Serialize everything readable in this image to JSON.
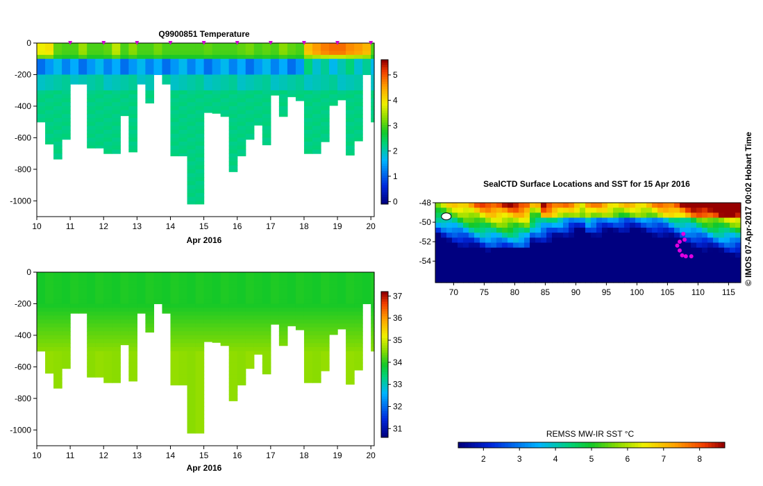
{
  "chart_data": [
    {
      "type": "heatmap",
      "title": "Q9900851  Temperature",
      "xlabel": "Apr 2016",
      "x_ticks": [
        "10",
        "11",
        "12",
        "13",
        "14",
        "15",
        "16",
        "17",
        "18",
        "19",
        "20"
      ],
      "y_ticks": [
        "0",
        "-200",
        "-400",
        "-600",
        "-800",
        "-1000"
      ],
      "xlim": [
        10,
        20.1
      ],
      "ylim": [
        -1100,
        0
      ],
      "colorbar": {
        "ticks": [
          "0",
          "1",
          "2",
          "3",
          "4",
          "5"
        ],
        "range": [
          -0.1,
          5.6
        ]
      },
      "profile_days": [
        10.0,
        10.25,
        10.5,
        10.75,
        11.0,
        11.25,
        11.5,
        11.75,
        12.0,
        12.25,
        12.5,
        12.75,
        13.0,
        13.25,
        13.5,
        13.75,
        14.0,
        14.25,
        14.5,
        14.75,
        15.0,
        15.25,
        15.5,
        15.75,
        16.0,
        16.25,
        16.5,
        16.75,
        17.0,
        17.25,
        17.5,
        17.75,
        18.0,
        18.25,
        18.5,
        18.75,
        19.0,
        19.25,
        19.5,
        19.75,
        20.0
      ],
      "max_depths": [
        500,
        640,
        735,
        610,
        260,
        260,
        665,
        665,
        700,
        700,
        460,
        690,
        260,
        380,
        200,
        260,
        715,
        715,
        1020,
        1020,
        440,
        445,
        465,
        815,
        715,
        610,
        520,
        645,
        330,
        465,
        340,
        365,
        700,
        700,
        625,
        395,
        360,
        710,
        620,
        200,
        500
      ],
      "surface_temp": [
        3.9,
        4.0,
        3.1,
        3.0,
        3.0,
        3.4,
        3.0,
        3.0,
        3.1,
        3.6,
        3.0,
        3.3,
        3.0,
        3.0,
        3.2,
        3.0,
        3.0,
        3.0,
        3.0,
        3.0,
        3.1,
        3.0,
        3.0,
        3.0,
        3.1,
        3.2,
        3.0,
        3.1,
        3.0,
        3.3,
        3.1,
        3.0,
        4.3,
        4.6,
        4.8,
        4.9,
        4.9,
        4.7,
        4.6,
        4.4,
        3.0
      ],
      "marker_days": [
        "11",
        "12",
        "13",
        "14",
        "15",
        "16",
        "17",
        "18",
        "19",
        "20"
      ]
    },
    {
      "type": "heatmap",
      "xlabel": "Apr 2016",
      "x_ticks": [
        "10",
        "11",
        "12",
        "13",
        "14",
        "15",
        "16",
        "17",
        "18",
        "19",
        "20"
      ],
      "y_ticks": [
        "0",
        "-200",
        "-400",
        "-600",
        "-800",
        "-1000"
      ],
      "xlim": [
        10,
        20.1
      ],
      "ylim": [
        -1100,
        0
      ],
      "colorbar": {
        "ticks": [
          "31",
          "32",
          "33",
          "34",
          "35",
          "36",
          "37"
        ],
        "range": [
          30.6,
          37.2
        ]
      },
      "surface_value": 33.9,
      "deep_value": 34.55
    },
    {
      "type": "heatmap",
      "title": "SealCTD Surface Locations and SST for 15 Apr 2016",
      "x_ticks": [
        "70",
        "75",
        "80",
        "85",
        "90",
        "95",
        "100",
        "105",
        "110",
        "115"
      ],
      "y_ticks": [
        "-48",
        "-50",
        "-52",
        "-54"
      ],
      "xlim": [
        67,
        117
      ],
      "ylim": [
        -56.2,
        -48
      ],
      "colorbar": {
        "label": "REMSS MW-IR SST °C",
        "ticks": [
          "2",
          "3",
          "4",
          "5",
          "6",
          "7",
          "8"
        ],
        "range": [
          1.3,
          8.7
        ]
      },
      "track_points": [
        [
          107.6,
          -51.2
        ],
        [
          107.0,
          -52.0
        ],
        [
          106.6,
          -52.4
        ],
        [
          107.0,
          -52.9
        ],
        [
          107.4,
          -53.4
        ],
        [
          108.0,
          -53.5
        ],
        [
          108.9,
          -53.5
        ],
        [
          107.8,
          -51.8
        ]
      ]
    }
  ],
  "side_label": "© IMOS 07-Apr-2017 00:02 Hobart Time"
}
